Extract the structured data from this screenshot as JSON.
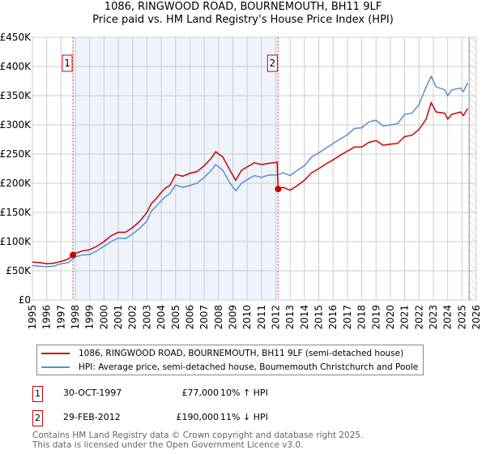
{
  "chart_data": {
    "type": "line",
    "title": "1086, RINGWOOD ROAD, BOURNEMOUTH, BH11 9LF",
    "subtitle": "Price paid vs. HM Land Registry's House Price Index (HPI)",
    "xlim": [
      1995,
      2026
    ],
    "ylim": [
      0,
      450000
    ],
    "x_ticks": [
      "1995",
      "1996",
      "1997",
      "1998",
      "1999",
      "2000",
      "2001",
      "2002",
      "2003",
      "2004",
      "2005",
      "2006",
      "2007",
      "2008",
      "2009",
      "2010",
      "2011",
      "2012",
      "2013",
      "2014",
      "2015",
      "2016",
      "2017",
      "2018",
      "2019",
      "2020",
      "2021",
      "2022",
      "2023",
      "2024",
      "2025",
      "2026"
    ],
    "y_ticks": [
      {
        "v": 0,
        "label": "£0"
      },
      {
        "v": 50000,
        "label": "£50K"
      },
      {
        "v": 100000,
        "label": "£100K"
      },
      {
        "v": 150000,
        "label": "£150K"
      },
      {
        "v": 200000,
        "label": "£200K"
      },
      {
        "v": 250000,
        "label": "£250K"
      },
      {
        "v": 300000,
        "label": "£300K"
      },
      {
        "v": 350000,
        "label": "£350K"
      },
      {
        "v": 400000,
        "label": "£400K"
      },
      {
        "v": 450000,
        "label": "£450K"
      }
    ],
    "grid": true,
    "shaded_range": [
      1997.83,
      2012.16
    ],
    "forecast_from": 2025.5,
    "series": [
      {
        "name": "1086, RINGWOOD ROAD, BOURNEMOUTH, BH11 9LF (semi-detached house)",
        "color": "#cc0000",
        "x": [
          1995,
          1995.5,
          1996,
          1996.5,
          1997,
          1997.5,
          1997.83,
          1998,
          1998.5,
          1999,
          1999.5,
          2000,
          2000.5,
          2001,
          2001.5,
          2002,
          2002.5,
          2003,
          2003.3,
          2003.7,
          2004,
          2004.3,
          2004.6,
          2005,
          2005.5,
          2006,
          2006.5,
          2007,
          2007.5,
          2007.8,
          2008.3,
          2008.8,
          2009.2,
          2009.6,
          2010,
          2010.5,
          2011,
          2011.5,
          2012.1,
          2012.16,
          2012.5,
          2013,
          2013.5,
          2014,
          2014.5,
          2015,
          2015.5,
          2016,
          2016.5,
          2017,
          2017.5,
          2018,
          2018.5,
          2019,
          2019.5,
          2020,
          2020.5,
          2021,
          2021.5,
          2022,
          2022.5,
          2022.85,
          2023.2,
          2023.8,
          2024,
          2024.3,
          2024.9,
          2025.1,
          2025.4
        ],
        "y": [
          65000,
          64000,
          62000,
          63000,
          66000,
          70000,
          77000,
          80000,
          84000,
          86000,
          92000,
          100000,
          110000,
          116000,
          116000,
          124000,
          135000,
          150000,
          165000,
          175000,
          184000,
          192000,
          196000,
          215000,
          212000,
          217000,
          220000,
          230000,
          243000,
          254000,
          245000,
          222000,
          205000,
          222000,
          228000,
          235000,
          232000,
          234000,
          236000,
          190000,
          193000,
          188000,
          196000,
          205000,
          218000,
          225000,
          233000,
          240000,
          248000,
          255000,
          262000,
          262000,
          270000,
          273000,
          265000,
          267000,
          268000,
          280000,
          282000,
          292000,
          310000,
          338000,
          322000,
          320000,
          310000,
          318000,
          322000,
          316000,
          328000
        ]
      },
      {
        "name": "HPI: Average price, semi-detached house, Bournemouth Christchurch and Poole",
        "color": "#5b8fd0",
        "x": [
          1995,
          1995.5,
          1996,
          1996.5,
          1997,
          1997.5,
          1997.83,
          1998,
          1998.5,
          1999,
          1999.5,
          2000,
          2000.5,
          2001,
          2001.5,
          2002,
          2002.5,
          2003,
          2003.3,
          2003.7,
          2004,
          2004.3,
          2004.6,
          2005,
          2005.5,
          2006,
          2006.5,
          2007,
          2007.5,
          2007.8,
          2008.3,
          2008.8,
          2009.2,
          2009.6,
          2010,
          2010.5,
          2011,
          2011.5,
          2012.1,
          2012.5,
          2013,
          2013.5,
          2014,
          2014.5,
          2015,
          2015.5,
          2016,
          2016.5,
          2017,
          2017.5,
          2018,
          2018.5,
          2019,
          2019.5,
          2020,
          2020.5,
          2021,
          2021.5,
          2022,
          2022.5,
          2022.85,
          2023.2,
          2023.8,
          2024,
          2024.3,
          2024.9,
          2025.1,
          2025.4
        ],
        "y": [
          59000,
          58000,
          57000,
          58000,
          62000,
          64000,
          70000,
          74000,
          77000,
          78000,
          84000,
          92000,
          100000,
          106000,
          105000,
          113000,
          123000,
          135000,
          152000,
          162000,
          170000,
          177000,
          182000,
          197000,
          193000,
          196000,
          200000,
          210000,
          222000,
          232000,
          222000,
          200000,
          187000,
          200000,
          206000,
          213000,
          210000,
          214000,
          214000,
          218000,
          213000,
          222000,
          230000,
          245000,
          252000,
          260000,
          268000,
          276000,
          283000,
          294000,
          295000,
          305000,
          308000,
          298000,
          300000,
          302000,
          318000,
          320000,
          335000,
          365000,
          383000,
          365000,
          360000,
          350000,
          360000,
          363000,
          357000,
          372000
        ]
      }
    ],
    "sales": [
      {
        "n": "1",
        "x": 1997.83,
        "y": 77000,
        "date": "30-OCT-1997",
        "price": "£77,000",
        "hpi": "10% ↑ HPI"
      },
      {
        "n": "2",
        "x": 2012.16,
        "y": 190000,
        "date": "29-FEB-2012",
        "price": "£190,000",
        "hpi": "11% ↓ HPI"
      }
    ]
  },
  "footer": {
    "line1": "Contains HM Land Registry data © Crown copyright and database right 2025.",
    "line2": "This data is licensed under the Open Government Licence v3.0."
  }
}
